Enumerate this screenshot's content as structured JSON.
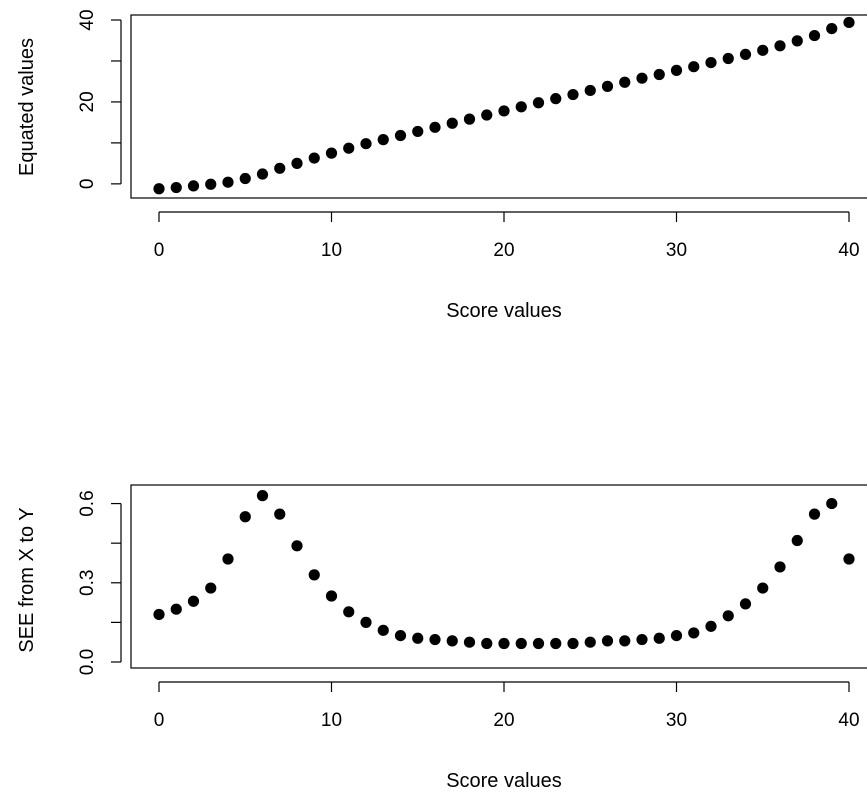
{
  "chart_data": [
    {
      "type": "scatter",
      "xlabel": "Score values",
      "ylabel": "Equated values",
      "xlim": [
        0,
        40
      ],
      "ylim": [
        -1.5,
        40
      ],
      "xticks": [
        0,
        10,
        20,
        30,
        40
      ],
      "xtick_labels": [
        "0",
        "10",
        "20",
        "30",
        "40"
      ],
      "yticks": [
        0,
        20,
        40
      ],
      "ytick_labels": [
        "0",
        "20",
        "40"
      ],
      "grid": false,
      "series": [
        {
          "x": [
            0,
            1,
            2,
            3,
            4,
            5,
            6,
            7,
            8,
            9,
            10,
            11,
            12,
            13,
            14,
            15,
            16,
            17,
            18,
            19,
            20,
            21,
            22,
            23,
            24,
            25,
            26,
            27,
            28,
            29,
            30,
            31,
            32,
            33,
            34,
            35,
            36,
            37,
            38,
            39,
            40
          ],
          "y": [
            -1.2,
            -0.9,
            -0.5,
            -0.1,
            0.4,
            1.3,
            2.4,
            3.8,
            5.0,
            6.3,
            7.5,
            8.7,
            9.8,
            10.8,
            11.8,
            12.8,
            13.8,
            14.8,
            15.8,
            16.8,
            17.8,
            18.8,
            19.8,
            20.8,
            21.8,
            22.8,
            23.8,
            24.8,
            25.8,
            26.7,
            27.7,
            28.6,
            29.6,
            30.6,
            31.6,
            32.6,
            33.7,
            34.9,
            36.2,
            37.9,
            39.4
          ]
        }
      ]
    },
    {
      "type": "scatter",
      "xlabel": "Score values",
      "ylabel": "SEE from X to Y",
      "xlim": [
        0,
        40
      ],
      "ylim": [
        0,
        0.64
      ],
      "xticks": [
        0,
        10,
        20,
        30,
        40
      ],
      "xtick_labels": [
        "0",
        "10",
        "20",
        "30",
        "40"
      ],
      "yticks": [
        0.0,
        0.3,
        0.6
      ],
      "ytick_labels": [
        "0.0",
        "0.3",
        "0.6"
      ],
      "grid": false,
      "series": [
        {
          "x": [
            0,
            1,
            2,
            3,
            4,
            5,
            6,
            7,
            8,
            9,
            10,
            11,
            12,
            13,
            14,
            15,
            16,
            17,
            18,
            19,
            20,
            21,
            22,
            23,
            24,
            25,
            26,
            27,
            28,
            29,
            30,
            31,
            32,
            33,
            34,
            35,
            36,
            37,
            38,
            39,
            40
          ],
          "y": [
            0.18,
            0.2,
            0.23,
            0.28,
            0.39,
            0.55,
            0.63,
            0.56,
            0.44,
            0.33,
            0.25,
            0.19,
            0.15,
            0.12,
            0.1,
            0.09,
            0.085,
            0.08,
            0.075,
            0.07,
            0.07,
            0.07,
            0.07,
            0.07,
            0.07,
            0.075,
            0.08,
            0.08,
            0.085,
            0.09,
            0.1,
            0.11,
            0.135,
            0.175,
            0.22,
            0.28,
            0.36,
            0.46,
            0.56,
            0.6,
            0.39
          ]
        }
      ]
    }
  ]
}
